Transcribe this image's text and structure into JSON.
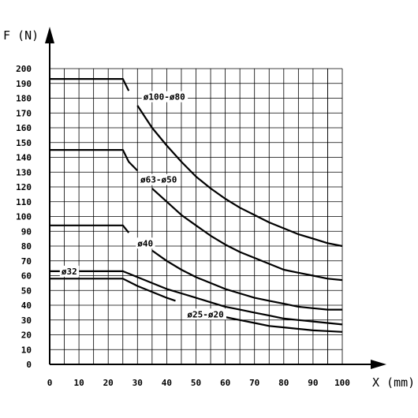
{
  "chart_data": {
    "type": "line",
    "xlabel": "X (mm)",
    "ylabel": "F (N)",
    "xlim": [
      0,
      100
    ],
    "ylim": [
      0,
      200
    ],
    "x_ticks": [
      "0",
      "10",
      "20",
      "30",
      "40",
      "50",
      "60",
      "70",
      "80",
      "90",
      "100"
    ],
    "y_ticks": [
      "0",
      "10",
      "20",
      "30",
      "40",
      "50",
      "60",
      "70",
      "80",
      "90",
      "100",
      "110",
      "120",
      "130",
      "140",
      "150",
      "160",
      "170",
      "180",
      "190",
      "200"
    ],
    "grid": true,
    "series": [
      {
        "name": "ø100-ø80",
        "segments": [
          [
            [
              0,
              193
            ],
            [
              25,
              193
            ],
            [
              27,
              185
            ]
          ],
          [
            [
              30,
              175
            ],
            [
              35,
              160
            ],
            [
              40,
              148
            ],
            [
              45,
              137
            ],
            [
              50,
              127
            ],
            [
              55,
              119
            ],
            [
              60,
              112
            ],
            [
              65,
              106
            ],
            [
              70,
              101
            ],
            [
              75,
              96
            ],
            [
              80,
              92
            ],
            [
              85,
              88
            ],
            [
              90,
              85
            ],
            [
              95,
              82
            ],
            [
              100,
              80
            ]
          ]
        ]
      },
      {
        "name": "ø63-ø50",
        "segments": [
          [
            [
              0,
              145
            ],
            [
              25,
              145
            ],
            [
              27,
              137
            ],
            [
              30,
              131
            ]
          ],
          [
            [
              35,
              119
            ],
            [
              40,
              110
            ],
            [
              45,
              101
            ],
            [
              50,
              94
            ],
            [
              55,
              87
            ],
            [
              60,
              81
            ],
            [
              65,
              76
            ],
            [
              70,
              72
            ],
            [
              75,
              68
            ],
            [
              80,
              64
            ],
            [
              85,
              62
            ],
            [
              90,
              60
            ],
            [
              95,
              58
            ],
            [
              100,
              57
            ]
          ]
        ]
      },
      {
        "name": "ø40",
        "segments": [
          [
            [
              0,
              94
            ],
            [
              25,
              94
            ],
            [
              27,
              89
            ]
          ],
          [
            [
              35,
              77
            ],
            [
              40,
              70
            ],
            [
              45,
              64
            ],
            [
              50,
              59
            ],
            [
              55,
              55
            ],
            [
              60,
              51
            ],
            [
              65,
              48
            ],
            [
              70,
              45
            ],
            [
              75,
              43
            ],
            [
              80,
              41
            ],
            [
              85,
              39
            ],
            [
              90,
              38
            ],
            [
              95,
              37
            ],
            [
              100,
              37
            ]
          ]
        ]
      },
      {
        "name": "ø32",
        "segments": [
          [
            [
              0,
              63
            ],
            [
              25,
              63
            ],
            [
              30,
              59
            ],
            [
              35,
              55
            ],
            [
              40,
              51
            ],
            [
              45,
              48
            ],
            [
              50,
              45
            ],
            [
              55,
              42
            ],
            [
              60,
              39
            ],
            [
              65,
              37
            ],
            [
              70,
              35
            ],
            [
              75,
              33
            ],
            [
              80,
              31
            ],
            [
              85,
              30
            ],
            [
              90,
              29
            ],
            [
              95,
              28
            ],
            [
              100,
              27
            ]
          ]
        ]
      },
      {
        "name": "ø25-ø20",
        "segments": [
          [
            [
              0,
              58
            ],
            [
              25,
              58
            ],
            [
              30,
              53
            ],
            [
              35,
              49
            ],
            [
              40,
              45
            ],
            [
              43,
              43
            ]
          ],
          [
            [
              57,
              35
            ]
          ],
          [
            [
              57,
              34
            ]
          ],
          [
            [
              57,
              34
            ]
          ]
        ]
      },
      {
        "name": "",
        "segments": [
          [
            [
              57,
              34
            ],
            [
              60,
              32
            ],
            [
              65,
              30
            ],
            [
              70,
              28
            ],
            [
              75,
              26
            ],
            [
              80,
              25
            ],
            [
              85,
              24
            ],
            [
              90,
              23
            ],
            [
              95,
              22.5
            ],
            [
              100,
              22
            ]
          ]
        ]
      }
    ],
    "labels": [
      {
        "text": "ø100-ø80",
        "x": 32,
        "y": 181
      },
      {
        "text": "ø63-ø50",
        "x": 31,
        "y": 125
      },
      {
        "text": "ø40",
        "x": 30,
        "y": 82
      },
      {
        "text": "ø32",
        "x": 4,
        "y": 63
      },
      {
        "text": "ø25-ø20",
        "x": 47,
        "y": 34
      }
    ]
  }
}
